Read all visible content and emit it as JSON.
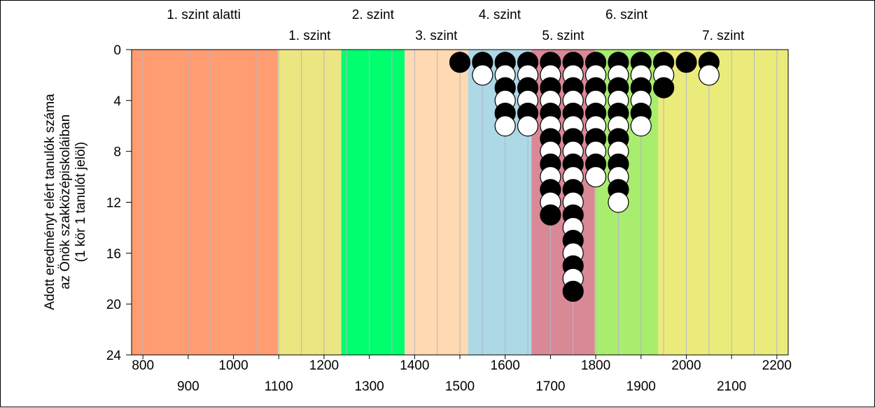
{
  "chart_data": {
    "type": "scatter",
    "title": "",
    "ylabel_lines": [
      "Adott eredményt elért tanulók száma",
      "az Önök szakközépiskoláiban",
      "(1 kör 1 tanulót jelöl)"
    ],
    "xlim": [
      775,
      2225
    ],
    "ylim": [
      0,
      24
    ],
    "y_inverted": true,
    "y_ticks": [
      0,
      4,
      8,
      12,
      16,
      20,
      24
    ],
    "x_ticks_row1": [
      800,
      1000,
      1200,
      1400,
      1600,
      1800,
      2000,
      2200
    ],
    "x_ticks_row2": [
      900,
      1100,
      1300,
      1500,
      1700,
      1900,
      2100
    ],
    "minor_gridlines_every": 50,
    "bands": [
      {
        "label": "1. szint alatti",
        "from": 775,
        "to": 1098,
        "color": "#ff9c71",
        "label_row": 1
      },
      {
        "label": "1. szint",
        "from": 1098,
        "to": 1238,
        "color": "#ebe682",
        "label_row": 2
      },
      {
        "label": "2. szint",
        "from": 1238,
        "to": 1378,
        "color": "#00ff6e",
        "label_row": 1
      },
      {
        "label": "3. szint",
        "from": 1378,
        "to": 1518,
        "color": "#ffd9b1",
        "label_row": 2
      },
      {
        "label": "4. szint",
        "from": 1518,
        "to": 1658,
        "color": "#add8e6",
        "label_row": 1
      },
      {
        "label": "5. szint",
        "from": 1658,
        "to": 1798,
        "color": "#d98896",
        "label_row": 2
      },
      {
        "label": "6. szint",
        "from": 1798,
        "to": 1938,
        "color": "#a8ed6e",
        "label_row": 1
      },
      {
        "label": "7. szint",
        "from": 1938,
        "to": 2225,
        "color": "#ebeb7c",
        "label_row": 2
      }
    ],
    "marker": {
      "fill_odd": "#000000",
      "fill_even": "#ffffff",
      "stroke": "#000000"
    },
    "columns": [
      {
        "x": 1500,
        "count": 1
      },
      {
        "x": 1550,
        "count": 2
      },
      {
        "x": 1600,
        "count": 6
      },
      {
        "x": 1650,
        "count": 6
      },
      {
        "x": 1700,
        "count": 13
      },
      {
        "x": 1750,
        "count": 19
      },
      {
        "x": 1800,
        "count": 10
      },
      {
        "x": 1850,
        "count": 12
      },
      {
        "x": 1900,
        "count": 6
      },
      {
        "x": 1950,
        "count": 3
      },
      {
        "x": 2000,
        "count": 1
      },
      {
        "x": 2050,
        "count": 2
      }
    ]
  }
}
